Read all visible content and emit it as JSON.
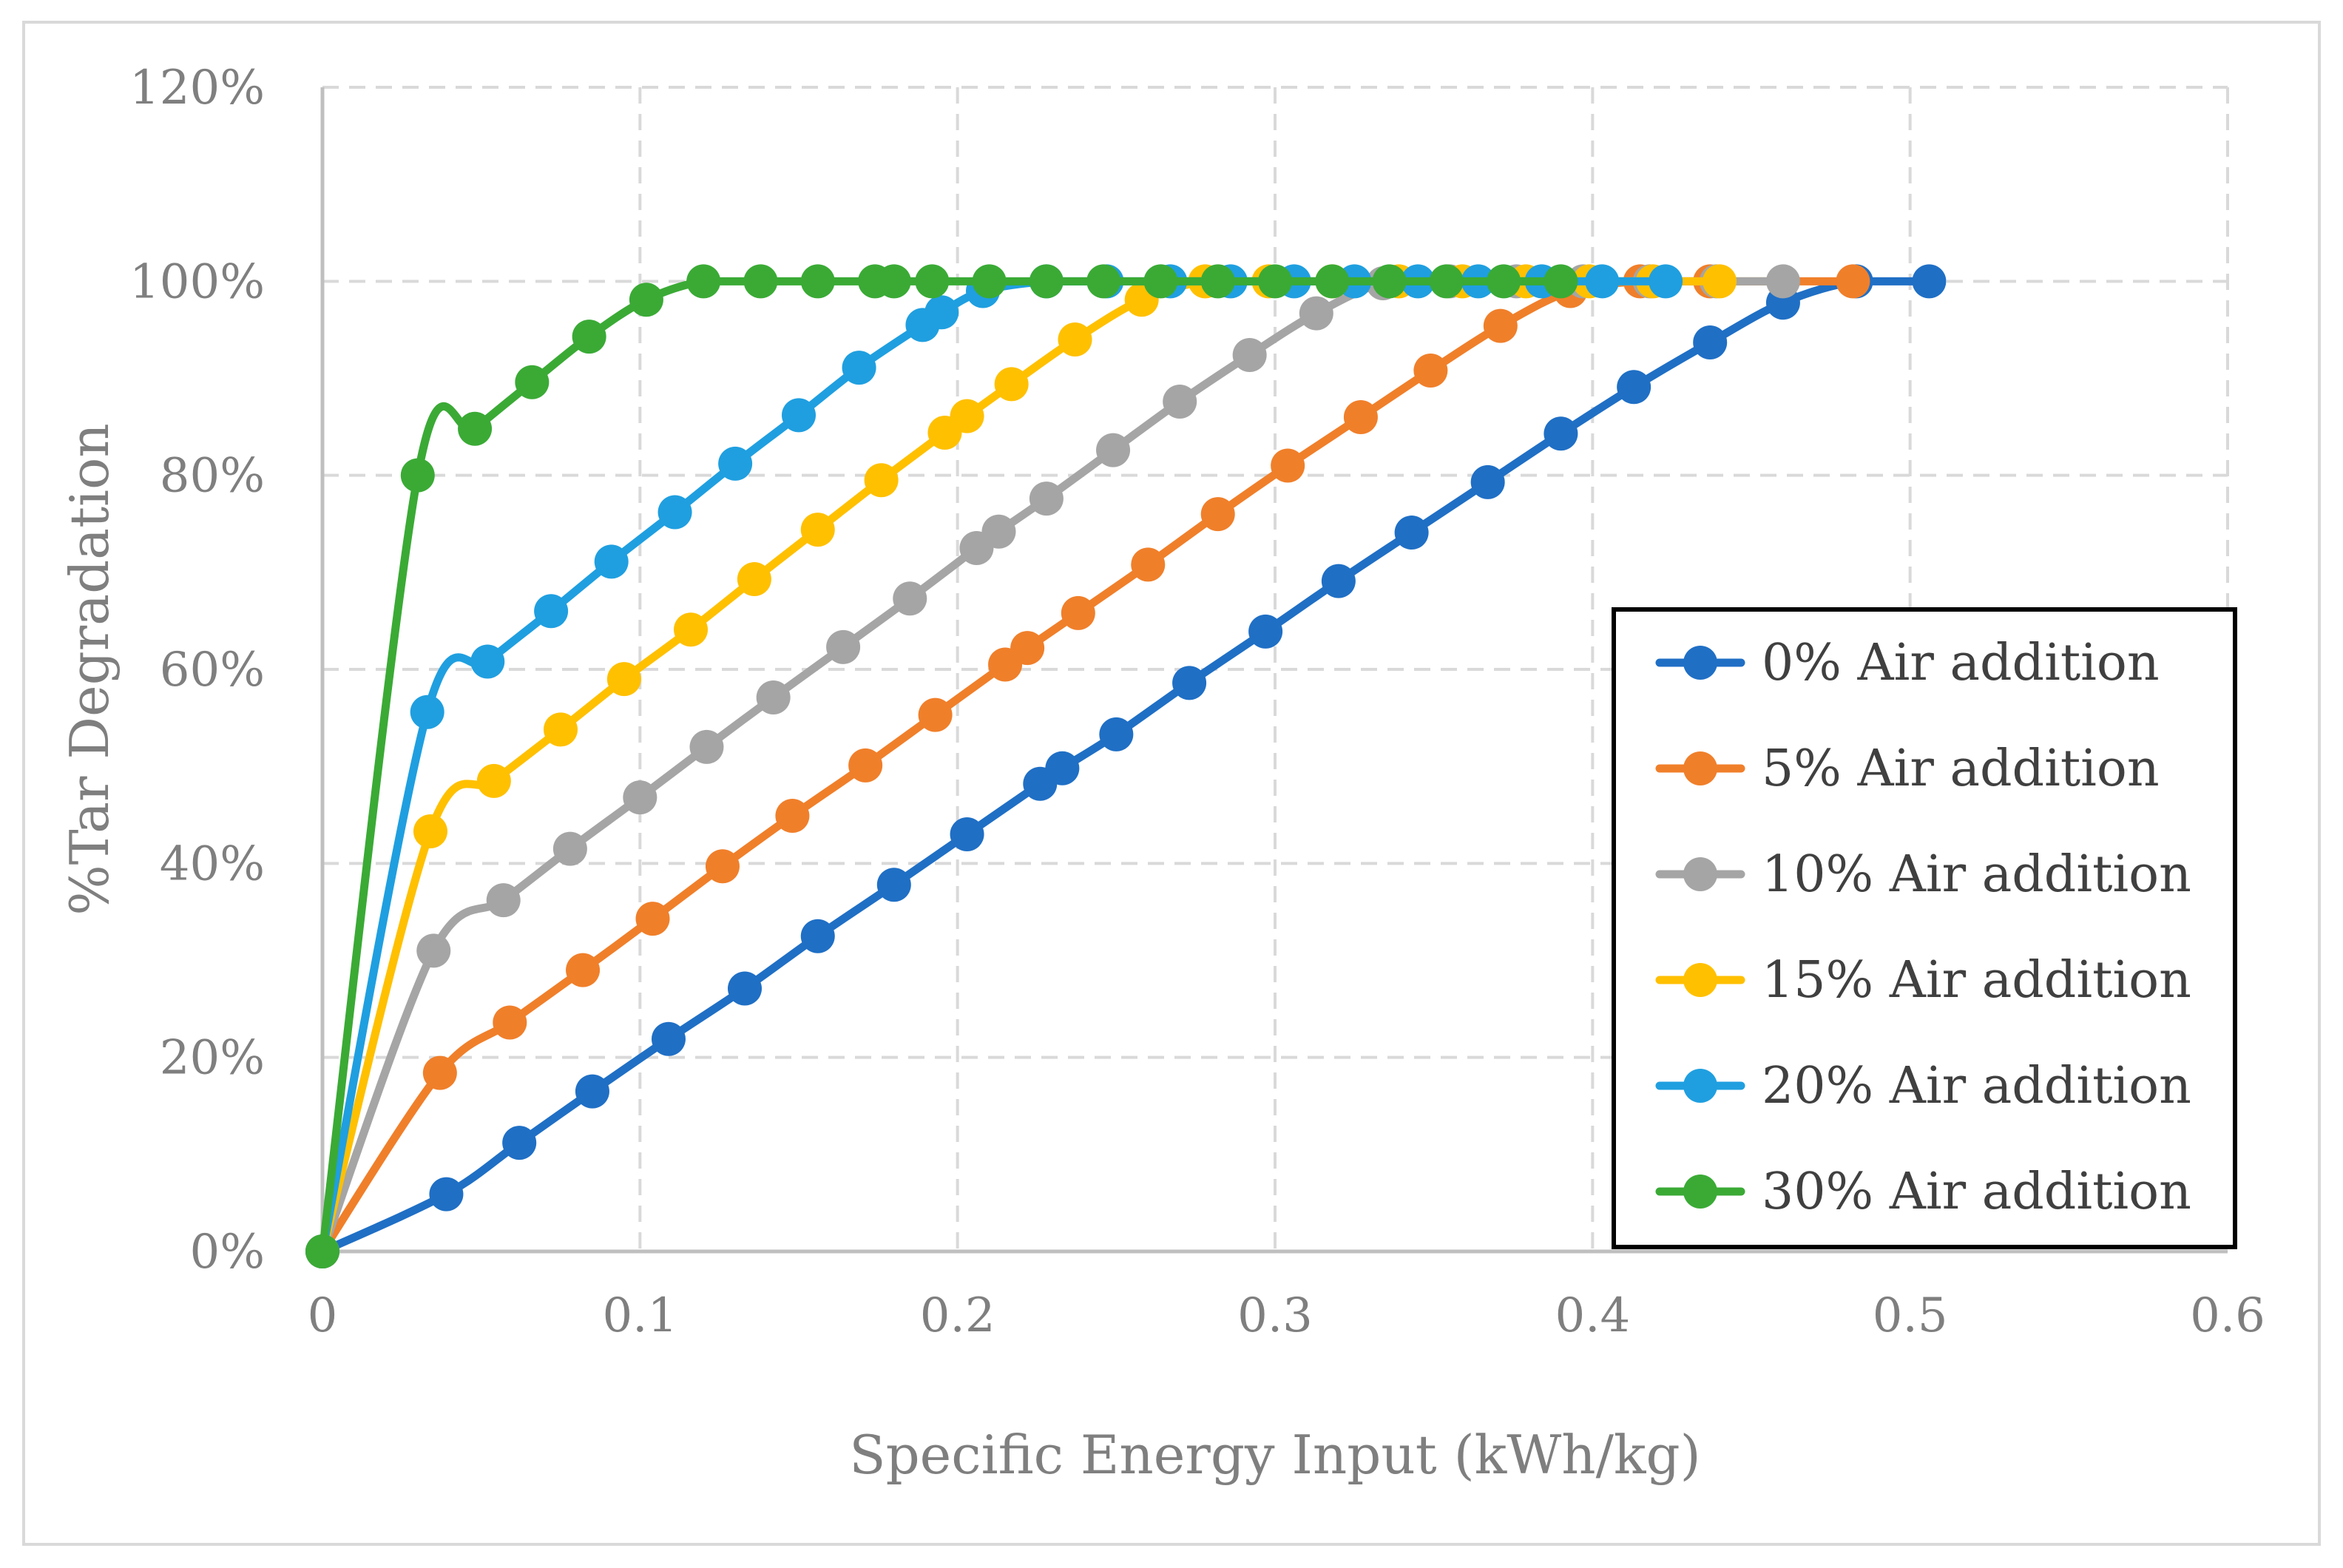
{
  "chart_data": {
    "type": "line",
    "title": "",
    "xlabel": "Specific Energy Input (kWh/kg)",
    "ylabel": "%Tar Degradation",
    "xlim": [
      0,
      0.6
    ],
    "ylim": [
      0,
      1.2
    ],
    "x_ticks": [
      "0",
      "0.1",
      "0.2",
      "0.3",
      "0.4",
      "0.5",
      "0.6"
    ],
    "y_ticks": [
      "0%",
      "20%",
      "40%",
      "60%",
      "80%",
      "100%",
      "120%"
    ],
    "grid": true,
    "legend_position": "bottom-right",
    "series": [
      {
        "name": "0% Air addition",
        "color": "#1f6fc5",
        "points": [
          [
            0,
            0
          ],
          [
            0.039,
            0.059
          ],
          [
            0.062,
            0.112
          ],
          [
            0.085,
            0.165
          ],
          [
            0.109,
            0.219
          ],
          [
            0.133,
            0.271
          ],
          [
            0.156,
            0.325
          ],
          [
            0.18,
            0.378
          ],
          [
            0.203,
            0.43
          ],
          [
            0.226,
            0.482
          ],
          [
            0.233,
            0.498
          ],
          [
            0.25,
            0.533
          ],
          [
            0.273,
            0.586
          ],
          [
            0.297,
            0.639
          ],
          [
            0.32,
            0.691
          ],
          [
            0.343,
            0.741
          ],
          [
            0.367,
            0.793
          ],
          [
            0.39,
            0.843
          ],
          [
            0.413,
            0.891
          ],
          [
            0.437,
            0.937
          ],
          [
            0.46,
            0.978
          ],
          [
            0.483,
            1.0
          ],
          [
            0.506,
            1.0
          ]
        ]
      },
      {
        "name": "5% Air addition",
        "color": "#f07f2a",
        "points": [
          [
            0,
            0
          ],
          [
            0.037,
            0.184
          ],
          [
            0.059,
            0.236
          ],
          [
            0.082,
            0.29
          ],
          [
            0.104,
            0.343
          ],
          [
            0.126,
            0.397
          ],
          [
            0.148,
            0.449
          ],
          [
            0.171,
            0.501
          ],
          [
            0.193,
            0.553
          ],
          [
            0.215,
            0.605
          ],
          [
            0.222,
            0.622
          ],
          [
            0.238,
            0.658
          ],
          [
            0.26,
            0.708
          ],
          [
            0.282,
            0.76
          ],
          [
            0.304,
            0.81
          ],
          [
            0.327,
            0.86
          ],
          [
            0.349,
            0.908
          ],
          [
            0.371,
            0.954
          ],
          [
            0.393,
            0.99
          ],
          [
            0.415,
            1.0
          ],
          [
            0.437,
            1.0
          ],
          [
            0.482,
            1.0
          ]
        ]
      },
      {
        "name": "10% Air addition",
        "color": "#a5a5a5",
        "points": [
          [
            0,
            0
          ],
          [
            0.035,
            0.31
          ],
          [
            0.057,
            0.362
          ],
          [
            0.078,
            0.415
          ],
          [
            0.1,
            0.468
          ],
          [
            0.121,
            0.52
          ],
          [
            0.142,
            0.571
          ],
          [
            0.164,
            0.623
          ],
          [
            0.185,
            0.673
          ],
          [
            0.206,
            0.725
          ],
          [
            0.213,
            0.742
          ],
          [
            0.228,
            0.776
          ],
          [
            0.249,
            0.826
          ],
          [
            0.27,
            0.876
          ],
          [
            0.292,
            0.924
          ],
          [
            0.313,
            0.967
          ],
          [
            0.334,
            0.998
          ],
          [
            0.355,
            1.0
          ],
          [
            0.376,
            1.0
          ],
          [
            0.397,
            1.0
          ],
          [
            0.418,
            1.0
          ],
          [
            0.439,
            1.0
          ],
          [
            0.46,
            1.0
          ]
        ]
      },
      {
        "name": "15% Air addition",
        "color": "#ffc000",
        "points": [
          [
            0,
            0
          ],
          [
            0.034,
            0.433
          ],
          [
            0.054,
            0.485
          ],
          [
            0.075,
            0.538
          ],
          [
            0.095,
            0.59
          ],
          [
            0.116,
            0.641
          ],
          [
            0.136,
            0.693
          ],
          [
            0.156,
            0.744
          ],
          [
            0.176,
            0.795
          ],
          [
            0.196,
            0.844
          ],
          [
            0.203,
            0.861
          ],
          [
            0.217,
            0.894
          ],
          [
            0.237,
            0.94
          ],
          [
            0.258,
            0.981
          ],
          [
            0.278,
            1.0
          ],
          [
            0.298,
            1.0
          ],
          [
            0.318,
            1.0
          ],
          [
            0.339,
            1.0
          ],
          [
            0.359,
            1.0
          ],
          [
            0.379,
            1.0
          ],
          [
            0.399,
            1.0
          ],
          [
            0.419,
            1.0
          ],
          [
            0.44,
            1.0
          ]
        ]
      },
      {
        "name": "20% Air addition",
        "color": "#1f9fe0",
        "points": [
          [
            0,
            0
          ],
          [
            0.033,
            0.556
          ],
          [
            0.052,
            0.608
          ],
          [
            0.072,
            0.66
          ],
          [
            0.091,
            0.711
          ],
          [
            0.111,
            0.762
          ],
          [
            0.13,
            0.812
          ],
          [
            0.15,
            0.862
          ],
          [
            0.169,
            0.911
          ],
          [
            0.189,
            0.955
          ],
          [
            0.195,
            0.968
          ],
          [
            0.208,
            0.99
          ],
          [
            0.228,
            1.0
          ],
          [
            0.247,
            1.0
          ],
          [
            0.267,
            1.0
          ],
          [
            0.286,
            1.0
          ],
          [
            0.306,
            1.0
          ],
          [
            0.325,
            1.0
          ],
          [
            0.345,
            1.0
          ],
          [
            0.364,
            1.0
          ],
          [
            0.384,
            1.0
          ],
          [
            0.403,
            1.0
          ],
          [
            0.423,
            1.0
          ]
        ]
      },
      {
        "name": "30% Air addition",
        "color": "#3aaa35",
        "points": [
          [
            0,
            0
          ],
          [
            0.03,
            0.8
          ],
          [
            0.048,
            0.848
          ],
          [
            0.066,
            0.896
          ],
          [
            0.084,
            0.943
          ],
          [
            0.102,
            0.981
          ],
          [
            0.12,
            1.0
          ],
          [
            0.138,
            1.0
          ],
          [
            0.156,
            1.0
          ],
          [
            0.174,
            1.0
          ],
          [
            0.18,
            1.0
          ],
          [
            0.192,
            1.0
          ],
          [
            0.21,
            1.0
          ],
          [
            0.228,
            1.0
          ],
          [
            0.246,
            1.0
          ],
          [
            0.264,
            1.0
          ],
          [
            0.282,
            1.0
          ],
          [
            0.3,
            1.0
          ],
          [
            0.318,
            1.0
          ],
          [
            0.336,
            1.0
          ],
          [
            0.354,
            1.0
          ],
          [
            0.372,
            1.0
          ],
          [
            0.39,
            1.0
          ]
        ]
      }
    ]
  }
}
